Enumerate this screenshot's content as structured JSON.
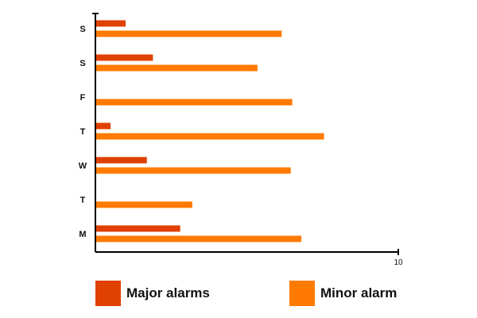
{
  "chart_data": {
    "type": "bar",
    "orientation": "horizontal",
    "title": "",
    "xlabel": "",
    "ylabel": "",
    "categories": [
      "M",
      "T",
      "W",
      "T",
      "F",
      "S",
      "S"
    ],
    "series": [
      {
        "name": "Major alarms",
        "color": "#E04000",
        "values": [
          2.8,
          0,
          1.7,
          0.5,
          0,
          1.9,
          1.0
        ]
      },
      {
        "name": "Minor alarm",
        "color": "#FF7A00",
        "values": [
          6.8,
          3.2,
          6.45,
          7.55,
          6.5,
          5.35,
          6.15
        ]
      }
    ],
    "xlim": [
      0,
      10
    ],
    "x_ticks": [
      "10"
    ],
    "grid": false,
    "legend_position": "bottom"
  }
}
